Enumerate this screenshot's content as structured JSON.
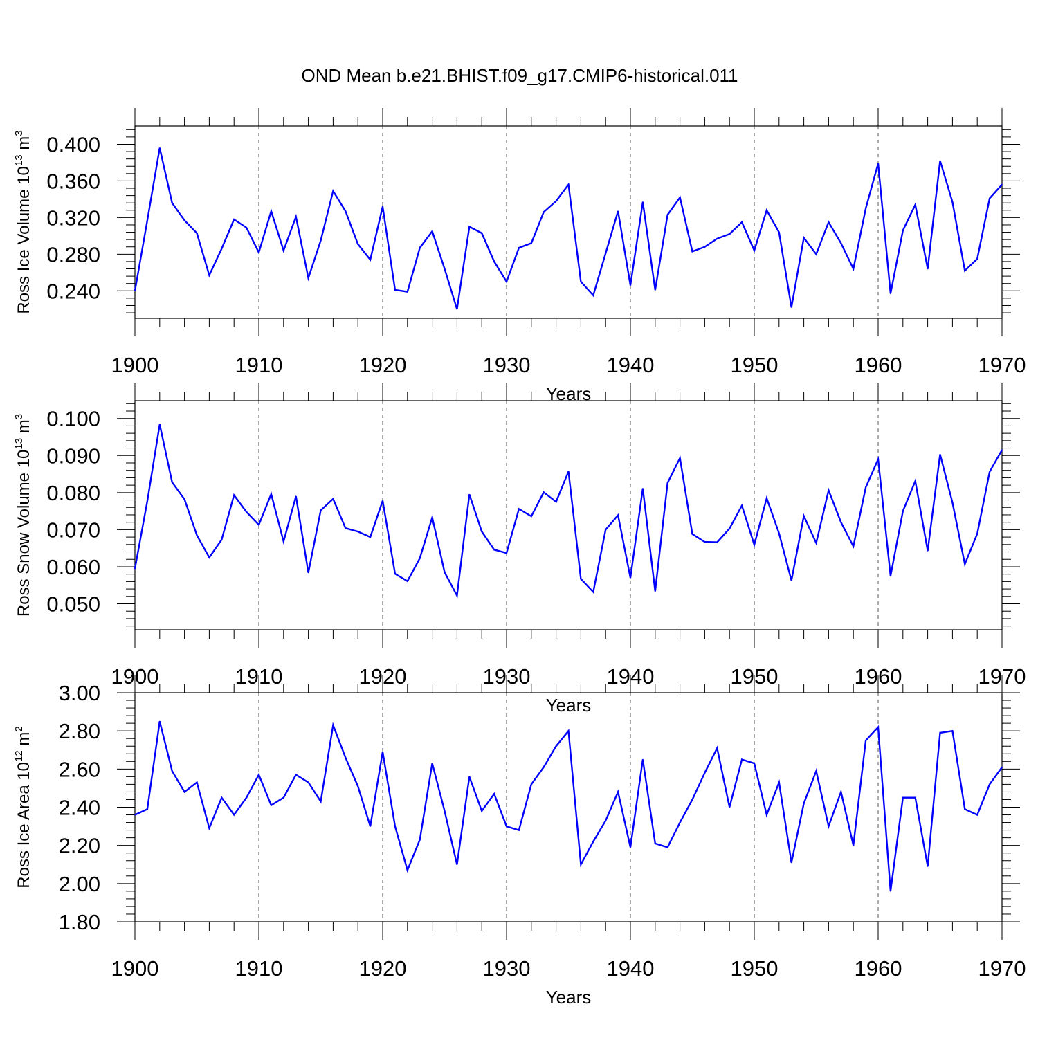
{
  "title": "OND Mean b.e21.BHIST.f09_g17.CMIP6-historical.011",
  "line_color": "#0000ff",
  "chart_data": [
    {
      "type": "line",
      "ylabel": {
        "base": "Ross Ice Volume 10",
        "exp": "13",
        "unit": " m",
        "unit_exp": "3"
      },
      "xlabel": "Years",
      "xlim": [
        1900,
        1970
      ],
      "ylim": [
        0.21,
        0.42
      ],
      "yticks": [
        0.24,
        0.28,
        0.32,
        0.36,
        0.4
      ],
      "ytick_labels": [
        "0.240",
        "0.280",
        "0.320",
        "0.360",
        "0.400"
      ],
      "xticks": [
        1900,
        1910,
        1920,
        1930,
        1940,
        1950,
        1960,
        1970
      ],
      "xtick_labels": [
        "1900",
        "1910",
        "1920",
        "1930",
        "1940",
        "1950",
        "1960",
        "1970"
      ],
      "grid": "vertical dashed at major x ticks",
      "x": [
        1900,
        1901,
        1902,
        1903,
        1904,
        1905,
        1906,
        1907,
        1908,
        1909,
        1910,
        1911,
        1912,
        1913,
        1914,
        1915,
        1916,
        1917,
        1918,
        1919,
        1920,
        1921,
        1922,
        1923,
        1924,
        1925,
        1926,
        1927,
        1928,
        1929,
        1930,
        1931,
        1932,
        1933,
        1934,
        1935,
        1936,
        1937,
        1938,
        1939,
        1940,
        1941,
        1942,
        1943,
        1944,
        1945,
        1946,
        1947,
        1948,
        1949,
        1950,
        1951,
        1952,
        1953,
        1954,
        1955,
        1956,
        1957,
        1958,
        1959,
        1960,
        1961,
        1962,
        1963,
        1964,
        1965,
        1966,
        1967,
        1968,
        1969,
        1970
      ],
      "series": [
        {
          "values": [
            0.24,
            0.317,
            0.396,
            0.336,
            0.317,
            0.303,
            0.257,
            0.286,
            0.318,
            0.309,
            0.282,
            0.327,
            0.284,
            0.321,
            0.254,
            0.295,
            0.349,
            0.327,
            0.291,
            0.274,
            0.332,
            0.241,
            0.239,
            0.287,
            0.305,
            0.264,
            0.22,
            0.31,
            0.303,
            0.272,
            0.25,
            0.287,
            0.292,
            0.326,
            0.338,
            0.356,
            0.25,
            0.235,
            0.281,
            0.327,
            0.246,
            0.337,
            0.241,
            0.323,
            0.342,
            0.283,
            0.288,
            0.297,
            0.302,
            0.315,
            0.284,
            0.328,
            0.304,
            0.222,
            0.298,
            0.28,
            0.315,
            0.292,
            0.264,
            0.33,
            0.379,
            0.237,
            0.306,
            0.334,
            0.264,
            0.382,
            0.337,
            0.262,
            0.275,
            0.341,
            0.356
          ]
        }
      ]
    },
    {
      "type": "line",
      "ylabel": {
        "base": "Ross Snow Volume 10",
        "exp": "13",
        "unit": " m",
        "unit_exp": "3"
      },
      "xlabel": "Years",
      "xlim": [
        1900,
        1970
      ],
      "ylim": [
        0.043,
        0.1048
      ],
      "yticks": [
        0.05,
        0.06,
        0.07,
        0.08,
        0.09,
        0.1
      ],
      "ytick_labels": [
        "0.050",
        "0.060",
        "0.070",
        "0.080",
        "0.090",
        "0.100"
      ],
      "xticks": [
        1900,
        1910,
        1920,
        1930,
        1940,
        1950,
        1960,
        1970
      ],
      "xtick_labels": [
        "1900",
        "1910",
        "1920",
        "1930",
        "1940",
        "1950",
        "1960",
        "1970"
      ],
      "grid": "vertical dashed at major x ticks",
      "x": [
        1900,
        1901,
        1902,
        1903,
        1904,
        1905,
        1906,
        1907,
        1908,
        1909,
        1910,
        1911,
        1912,
        1913,
        1914,
        1915,
        1916,
        1917,
        1918,
        1919,
        1920,
        1921,
        1922,
        1923,
        1924,
        1925,
        1926,
        1927,
        1928,
        1929,
        1930,
        1931,
        1932,
        1933,
        1934,
        1935,
        1936,
        1937,
        1938,
        1939,
        1940,
        1941,
        1942,
        1943,
        1944,
        1945,
        1946,
        1947,
        1948,
        1949,
        1950,
        1951,
        1952,
        1953,
        1954,
        1955,
        1956,
        1957,
        1958,
        1959,
        1960,
        1961,
        1962,
        1963,
        1964,
        1965,
        1966,
        1967,
        1968,
        1969,
        1970
      ],
      "series": [
        {
          "values": [
            0.0595,
            0.0777,
            0.0984,
            0.0828,
            0.0782,
            0.0685,
            0.0625,
            0.0673,
            0.0793,
            0.0748,
            0.0713,
            0.0796,
            0.0668,
            0.079,
            0.0584,
            0.0752,
            0.0783,
            0.0704,
            0.0695,
            0.068,
            0.0778,
            0.0581,
            0.0561,
            0.0623,
            0.0733,
            0.0585,
            0.0522,
            0.0795,
            0.0695,
            0.0646,
            0.0637,
            0.0756,
            0.0736,
            0.0801,
            0.0775,
            0.0857,
            0.0567,
            0.0532,
            0.07,
            0.0739,
            0.057,
            0.0811,
            0.0534,
            0.0826,
            0.0893,
            0.0688,
            0.0667,
            0.0666,
            0.0703,
            0.0765,
            0.0659,
            0.0785,
            0.069,
            0.0563,
            0.0737,
            0.0664,
            0.0806,
            0.072,
            0.0655,
            0.0814,
            0.089,
            0.0575,
            0.075,
            0.0831,
            0.0643,
            0.0903,
            0.0773,
            0.0607,
            0.0689,
            0.0856,
            0.0915
          ]
        }
      ]
    },
    {
      "type": "line",
      "ylabel": {
        "base": "Ross Ice Area 10",
        "exp": "12",
        "unit": " m",
        "unit_exp": "2"
      },
      "xlabel": "Years",
      "xlim": [
        1900,
        1970
      ],
      "ylim": [
        1.8,
        3.0
      ],
      "yticks": [
        1.8,
        2.0,
        2.2,
        2.4,
        2.6,
        2.8,
        3.0
      ],
      "ytick_labels": [
        "1.80",
        "2.00",
        "2.20",
        "2.40",
        "2.60",
        "2.80",
        "3.00"
      ],
      "xticks": [
        1900,
        1910,
        1920,
        1930,
        1940,
        1950,
        1960,
        1970
      ],
      "xtick_labels": [
        "1900",
        "1910",
        "1920",
        "1930",
        "1940",
        "1950",
        "1960",
        "1970"
      ],
      "grid": "vertical dashed at major x ticks",
      "x": [
        1900,
        1901,
        1902,
        1903,
        1904,
        1905,
        1906,
        1907,
        1908,
        1909,
        1910,
        1911,
        1912,
        1913,
        1914,
        1915,
        1916,
        1917,
        1918,
        1919,
        1920,
        1921,
        1922,
        1923,
        1924,
        1925,
        1926,
        1927,
        1928,
        1929,
        1930,
        1931,
        1932,
        1933,
        1934,
        1935,
        1936,
        1937,
        1938,
        1939,
        1940,
        1941,
        1942,
        1943,
        1944,
        1945,
        1946,
        1947,
        1948,
        1949,
        1950,
        1951,
        1952,
        1953,
        1954,
        1955,
        1956,
        1957,
        1958,
        1959,
        1960,
        1961,
        1962,
        1963,
        1964,
        1965,
        1966,
        1967,
        1968,
        1969,
        1970
      ],
      "series": [
        {
          "values": [
            2.36,
            2.39,
            2.85,
            2.59,
            2.48,
            2.53,
            2.29,
            2.45,
            2.36,
            2.45,
            2.57,
            2.41,
            2.45,
            2.57,
            2.53,
            2.43,
            2.83,
            2.66,
            2.51,
            2.3,
            2.69,
            2.3,
            2.07,
            2.23,
            2.63,
            2.38,
            2.1,
            2.56,
            2.38,
            2.47,
            2.3,
            2.28,
            2.52,
            2.61,
            2.72,
            2.8,
            2.1,
            2.22,
            2.33,
            2.48,
            2.19,
            2.65,
            2.21,
            2.19,
            2.32,
            2.44,
            2.58,
            2.71,
            2.4,
            2.65,
            2.63,
            2.36,
            2.53,
            2.11,
            2.42,
            2.59,
            2.3,
            2.48,
            2.2,
            2.75,
            2.82,
            1.96,
            2.45,
            2.45,
            2.09,
            2.79,
            2.8,
            2.39,
            2.36,
            2.52,
            2.61
          ]
        }
      ]
    }
  ]
}
